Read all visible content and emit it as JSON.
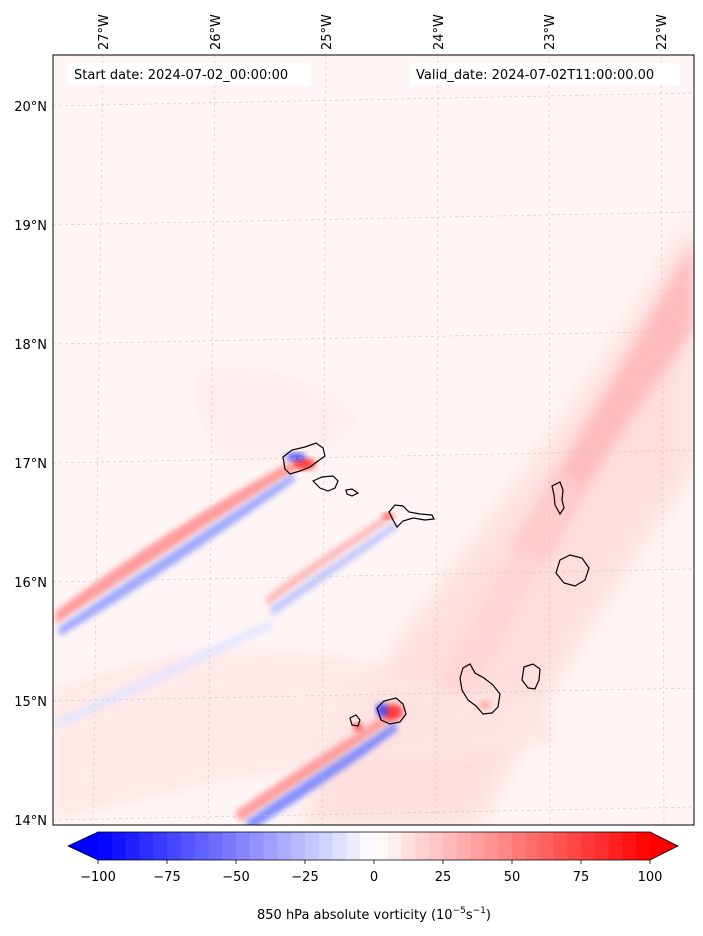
{
  "map": {
    "start_label": "Start date: 2024-07-02_00:00:00",
    "valid_label": "Valid_date: 2024-07-02T11:00:00.00",
    "background_color": "#fff5f5",
    "coastline_color": "#000000",
    "gridline_color": "#c8c8c8",
    "lon_ticks": [
      "27°W",
      "26°W",
      "25°W",
      "24°W",
      "23°W",
      "22°W"
    ],
    "lat_ticks": [
      "20°N",
      "19°N",
      "18°N",
      "17°N",
      "16°N",
      "15°N",
      "14°N"
    ]
  },
  "colorbar": {
    "label_prefix": "850 hPa absolute vorticity (10",
    "label_exp1": "−5",
    "label_mid": "s",
    "label_exp2": "−1",
    "label_suffix": ")",
    "min": -100,
    "max": 100,
    "tick_values": [
      -100,
      -75,
      -50,
      -25,
      0,
      25,
      50,
      75,
      100
    ],
    "tick_labels": [
      "−100",
      "−75",
      "−50",
      "−25",
      "0",
      "25",
      "50",
      "75",
      "100"
    ],
    "extend": "both",
    "colormap": "bwr",
    "negative_color": "#0000ff",
    "positive_color": "#ff0000",
    "center_color": "#ffffff"
  }
}
